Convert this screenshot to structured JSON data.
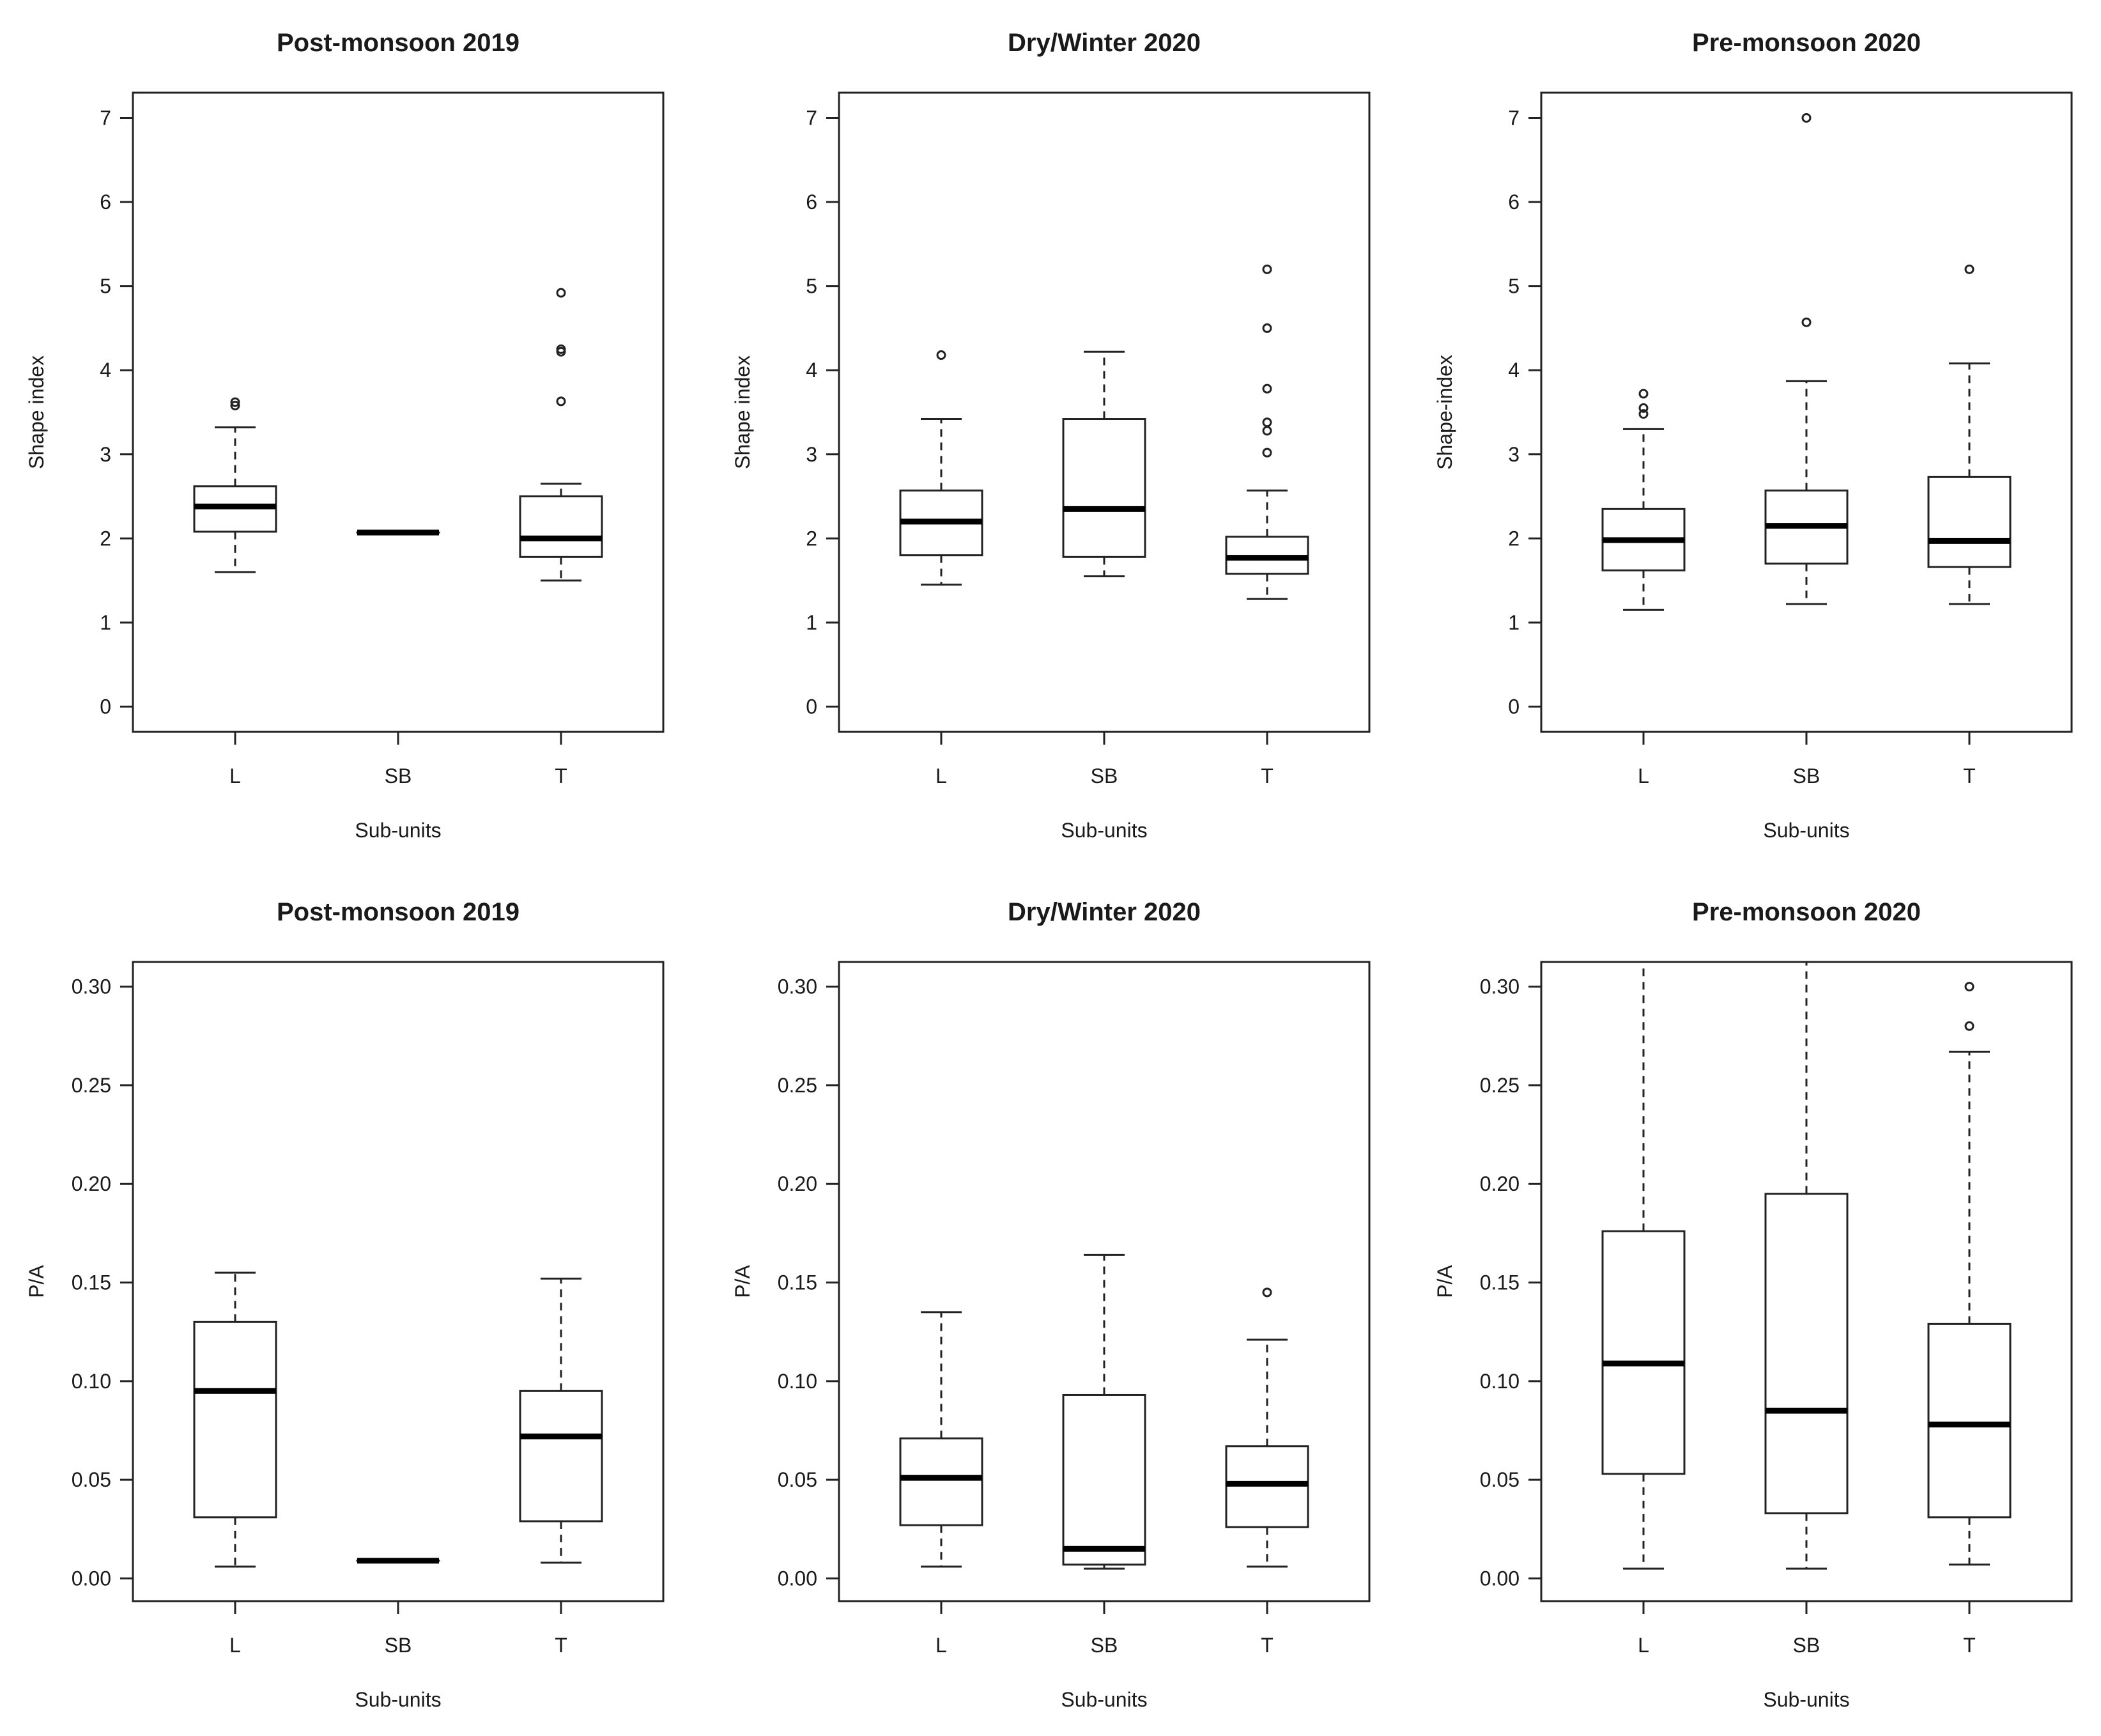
{
  "chart_data": [
    {
      "type": "box",
      "title": "Post-monsoon 2019",
      "xlabel": "Sub-units",
      "ylabel": "Shape index",
      "ylim": [
        -0.3,
        7.3
      ],
      "yticks": [
        "0",
        "1",
        "2",
        "3",
        "4",
        "5",
        "6",
        "7"
      ],
      "categories": [
        "L",
        "SB",
        "T"
      ],
      "boxes": [
        {
          "whisker_low": 1.6,
          "q1": 2.08,
          "median": 2.38,
          "q3": 2.62,
          "whisker_high": 3.32,
          "outliers": [
            3.58,
            3.62
          ]
        },
        {
          "whisker_low": 2.07,
          "q1": 2.07,
          "median": 2.07,
          "q3": 2.07,
          "whisker_high": 2.07,
          "outliers": []
        },
        {
          "whisker_low": 1.5,
          "q1": 1.78,
          "median": 2.0,
          "q3": 2.5,
          "whisker_high": 2.65,
          "outliers": [
            3.63,
            4.22,
            4.25,
            4.92
          ]
        }
      ]
    },
    {
      "type": "box",
      "title": "Dry/Winter 2020",
      "xlabel": "Sub-units",
      "ylabel": "Shape index",
      "ylim": [
        -0.3,
        7.3
      ],
      "yticks": [
        "0",
        "1",
        "2",
        "3",
        "4",
        "5",
        "6",
        "7"
      ],
      "categories": [
        "L",
        "SB",
        "T"
      ],
      "boxes": [
        {
          "whisker_low": 1.45,
          "q1": 1.8,
          "median": 2.2,
          "q3": 2.57,
          "whisker_high": 3.42,
          "outliers": [
            4.18
          ]
        },
        {
          "whisker_low": 1.55,
          "q1": 1.78,
          "median": 2.35,
          "q3": 3.42,
          "whisker_high": 4.22,
          "outliers": []
        },
        {
          "whisker_low": 1.28,
          "q1": 1.58,
          "median": 1.77,
          "q3": 2.02,
          "whisker_high": 2.57,
          "outliers": [
            3.02,
            3.28,
            3.38,
            3.78,
            4.5,
            5.2
          ]
        }
      ]
    },
    {
      "type": "box",
      "title": "Pre-monsoon 2020",
      "xlabel": "Sub-units",
      "ylabel": "Shape-index",
      "ylim": [
        -0.3,
        7.3
      ],
      "yticks": [
        "0",
        "1",
        "2",
        "3",
        "4",
        "5",
        "6",
        "7"
      ],
      "categories": [
        "L",
        "SB",
        "T"
      ],
      "boxes": [
        {
          "whisker_low": 1.15,
          "q1": 1.62,
          "median": 1.98,
          "q3": 2.35,
          "whisker_high": 3.3,
          "outliers": [
            3.48,
            3.55,
            3.72
          ]
        },
        {
          "whisker_low": 1.22,
          "q1": 1.7,
          "median": 2.15,
          "q3": 2.57,
          "whisker_high": 3.87,
          "outliers": [
            4.57,
            7.0
          ]
        },
        {
          "whisker_low": 1.22,
          "q1": 1.66,
          "median": 1.97,
          "q3": 2.73,
          "whisker_high": 4.08,
          "outliers": [
            5.2
          ]
        }
      ]
    },
    {
      "type": "box",
      "title": "Post-monsoon 2019",
      "xlabel": "Sub-units",
      "ylabel": "P/A",
      "ylim": [
        -0.0115,
        0.3125
      ],
      "yticks": [
        "0.00",
        "0.05",
        "0.10",
        "0.15",
        "0.20",
        "0.25",
        "0.30"
      ],
      "categories": [
        "L",
        "SB",
        "T"
      ],
      "boxes": [
        {
          "whisker_low": 0.006,
          "q1": 0.031,
          "median": 0.095,
          "q3": 0.13,
          "whisker_high": 0.155,
          "outliers": []
        },
        {
          "whisker_low": 0.009,
          "q1": 0.009,
          "median": 0.009,
          "q3": 0.009,
          "whisker_high": 0.009,
          "outliers": []
        },
        {
          "whisker_low": 0.008,
          "q1": 0.029,
          "median": 0.072,
          "q3": 0.095,
          "whisker_high": 0.152,
          "outliers": []
        }
      ]
    },
    {
      "type": "box",
      "title": "Dry/Winter 2020",
      "xlabel": "Sub-units",
      "ylabel": "P/A",
      "ylim": [
        -0.0115,
        0.3125
      ],
      "yticks": [
        "0.00",
        "0.05",
        "0.10",
        "0.15",
        "0.20",
        "0.25",
        "0.30"
      ],
      "categories": [
        "L",
        "SB",
        "T"
      ],
      "boxes": [
        {
          "whisker_low": 0.006,
          "q1": 0.027,
          "median": 0.051,
          "q3": 0.071,
          "whisker_high": 0.135,
          "outliers": []
        },
        {
          "whisker_low": 0.005,
          "q1": 0.007,
          "median": 0.015,
          "q3": 0.093,
          "whisker_high": 0.164,
          "outliers": []
        },
        {
          "whisker_low": 0.006,
          "q1": 0.026,
          "median": 0.048,
          "q3": 0.067,
          "whisker_high": 0.121,
          "outliers": [
            0.145
          ]
        }
      ]
    },
    {
      "type": "box",
      "title": "Pre-monsoon 2020",
      "xlabel": "Sub-units",
      "ylabel": "P/A",
      "ylim": [
        -0.0115,
        0.3125
      ],
      "yticks": [
        "0.00",
        "0.05",
        "0.10",
        "0.15",
        "0.20",
        "0.25",
        "0.30"
      ],
      "categories": [
        "L",
        "SB",
        "T"
      ],
      "boxes": [
        {
          "whisker_low": 0.005,
          "q1": 0.053,
          "median": 0.109,
          "q3": 0.176,
          "whisker_high": 0.32,
          "outliers": []
        },
        {
          "whisker_low": 0.005,
          "q1": 0.033,
          "median": 0.085,
          "q3": 0.195,
          "whisker_high": 0.32,
          "outliers": []
        },
        {
          "whisker_low": 0.007,
          "q1": 0.031,
          "median": 0.078,
          "q3": 0.129,
          "whisker_high": 0.267,
          "outliers": [
            0.28,
            0.3
          ]
        }
      ]
    }
  ]
}
